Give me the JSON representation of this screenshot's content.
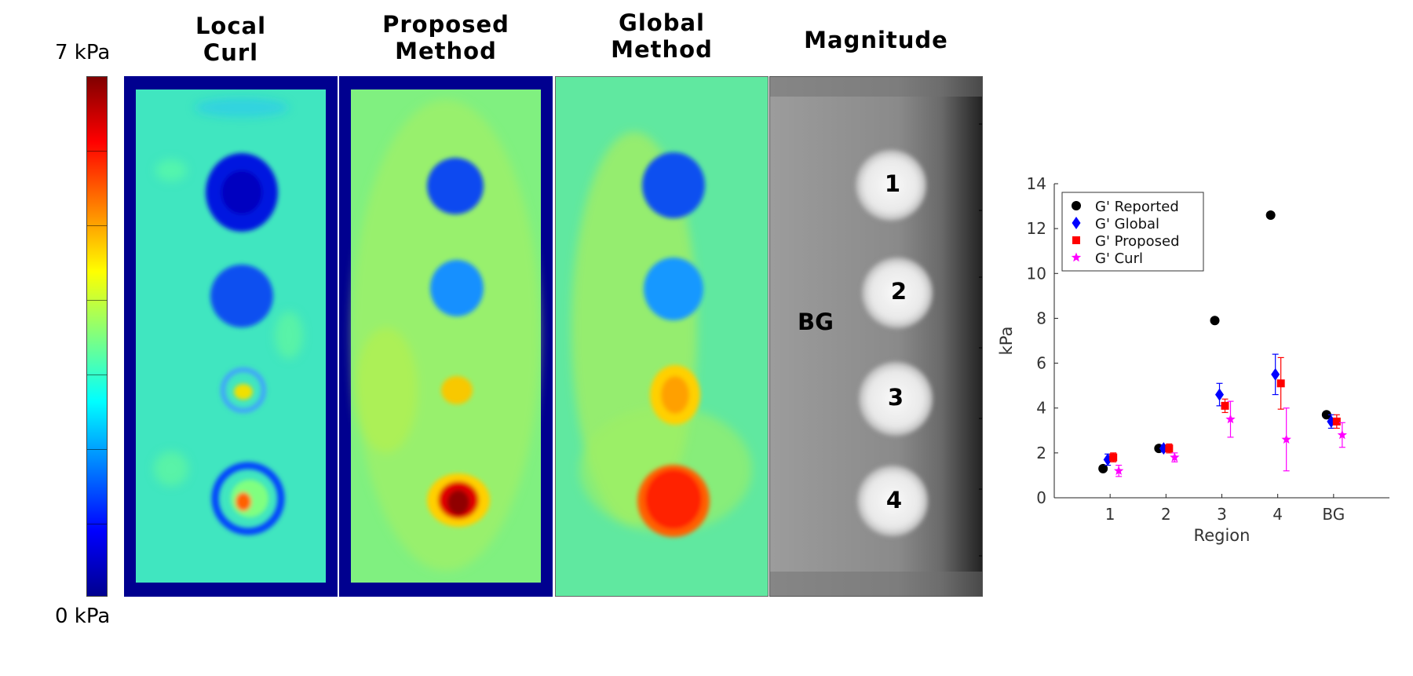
{
  "panels": {
    "local_curl": {
      "title_l1": "Local",
      "title_l2": "Curl"
    },
    "proposed": {
      "title_l1": "Proposed",
      "title_l2": "Method"
    },
    "global": {
      "title_l1": "Global",
      "title_l2": "Method"
    },
    "magnitude": {
      "title": "Magnitude",
      "bg_label": "BG",
      "region_labels": [
        "1",
        "2",
        "3",
        "4"
      ]
    }
  },
  "colorbar": {
    "max_label": "7 kPa",
    "min_label": "0 kPa",
    "colormap": "jet",
    "range": [
      0,
      7
    ]
  },
  "chart_data": {
    "type": "scatter",
    "categories": [
      "1",
      "2",
      "3",
      "4",
      "BG"
    ],
    "xlabel": "Region",
    "ylabel": "kPa",
    "ylim": [
      0,
      14
    ],
    "yticks": [
      "0",
      "2",
      "4",
      "6",
      "8",
      "10",
      "12",
      "14"
    ],
    "legend_position": "top-left",
    "grid": false,
    "series": [
      {
        "name": "G' Reported",
        "color": "#000000",
        "marker": "circle",
        "values": [
          1.3,
          2.2,
          7.9,
          12.6,
          3.7
        ],
        "err": [
          0,
          0,
          0,
          0,
          0
        ]
      },
      {
        "name": "G' Global",
        "color": "#0000ff",
        "marker": "diamond",
        "values": [
          1.7,
          2.2,
          4.6,
          5.5,
          3.4
        ],
        "err": [
          0.25,
          0.15,
          0.5,
          0.9,
          0.3
        ]
      },
      {
        "name": "G' Proposed",
        "color": "#ff0000",
        "marker": "square",
        "values": [
          1.8,
          2.2,
          4.1,
          5.1,
          3.4
        ],
        "err": [
          0.2,
          0.2,
          0.3,
          1.15,
          0.3
        ]
      },
      {
        "name": "G' Curl",
        "color": "#ff00ff",
        "marker": "star",
        "values": [
          1.2,
          1.8,
          3.5,
          2.6,
          2.8
        ],
        "err": [
          0.25,
          0.2,
          0.8,
          1.4,
          0.55
        ]
      }
    ]
  }
}
